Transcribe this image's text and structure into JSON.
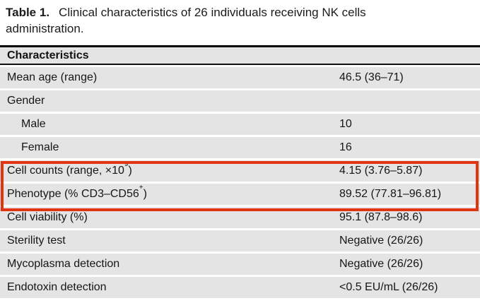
{
  "caption": {
    "prefix": "Table 1.",
    "line1": "Clinical characteristics of 26 individuals receiving NK cells",
    "line2": "administration."
  },
  "table": {
    "header": "Characteristics",
    "rows": [
      {
        "label": "Mean age (range)",
        "value": "46.5 (36–71)"
      },
      {
        "label": "Gender",
        "value": ""
      },
      {
        "label": "Male",
        "value": "10",
        "indent": true
      },
      {
        "label": "Female",
        "value": "16",
        "indent": true
      },
      {
        "label": "Cell counts (range, ×10",
        "sup": "9",
        "label_end": ")",
        "value": "4.15 (3.76–5.87)",
        "highlighted": true
      },
      {
        "label": "Phenotype (% CD3–CD56",
        "sup": "+",
        "label_end": ")",
        "value": "89.52 (77.81–96.81)",
        "highlighted": true
      },
      {
        "label": "Cell viability (%)",
        "value": "95.1 (87.8–98.6)"
      },
      {
        "label": "Sterility test",
        "value": "Negative (26/26)"
      },
      {
        "label": "Mycoplasma detection",
        "value": "Negative (26/26)"
      },
      {
        "label": "Endotoxin detection",
        "value": "<0.5 EU/mL (26/26)"
      }
    ],
    "colors": {
      "row_background": "#e4e4e4",
      "highlight_border": "#e23312",
      "rule": "#000000"
    }
  }
}
